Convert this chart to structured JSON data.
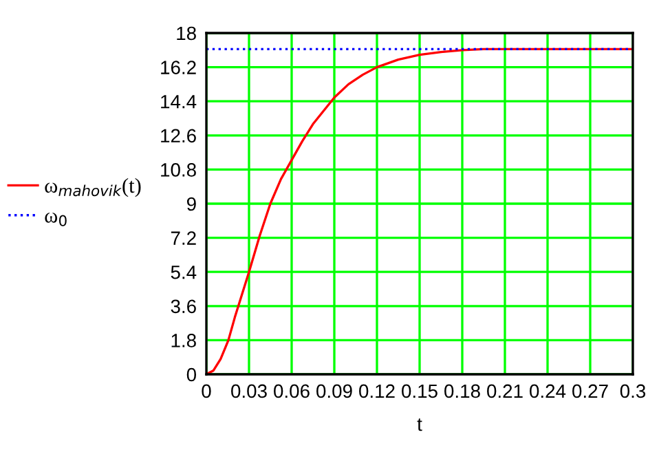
{
  "chart_data": {
    "type": "line",
    "xlabel": "t",
    "x": [
      0,
      0.005,
      0.01,
      0.0155,
      0.02,
      0.025,
      0.03,
      0.0375,
      0.045,
      0.0525,
      0.06,
      0.0675,
      0.075,
      0.0825,
      0.09,
      0.1,
      0.11,
      0.12,
      0.135,
      0.15,
      0.165,
      0.18,
      0.195,
      0.21,
      0.24,
      0.27,
      0.3
    ],
    "series": [
      {
        "name": "ω$_{mahovik}$(t)",
        "color": "#ff0000",
        "line_style": "solid",
        "values": [
          0,
          0.2,
          0.8,
          1.8,
          3.0,
          4.2,
          5.4,
          7.3,
          9.0,
          10.3,
          11.3,
          12.3,
          13.2,
          13.9,
          14.6,
          15.3,
          15.8,
          16.2,
          16.6,
          16.85,
          17.0,
          17.1,
          17.15,
          17.15,
          17.15,
          17.15,
          17.15
        ]
      },
      {
        "name": "ω$_{0}$",
        "color": "#0000ff",
        "line_style": "dotted",
        "values": [
          17.15,
          17.15,
          17.15,
          17.15,
          17.15,
          17.15,
          17.15,
          17.15,
          17.15,
          17.15,
          17.15,
          17.15,
          17.15,
          17.15,
          17.15,
          17.15,
          17.15,
          17.15,
          17.15,
          17.15,
          17.15,
          17.15,
          17.15,
          17.15,
          17.15,
          17.15,
          17.15
        ]
      }
    ],
    "xlim": [
      0,
      0.3
    ],
    "xticks": [
      0,
      0.03,
      0.06,
      0.09,
      0.12,
      0.15,
      0.18,
      0.21,
      0.24,
      0.27,
      0.3
    ],
    "ylim": [
      0,
      18
    ],
    "yticks": [
      0,
      1.8,
      3.6,
      5.4,
      7.2,
      9,
      10.8,
      12.6,
      14.4,
      16.2,
      18
    ],
    "grid": true,
    "legend": "left",
    "marker": "none"
  }
}
